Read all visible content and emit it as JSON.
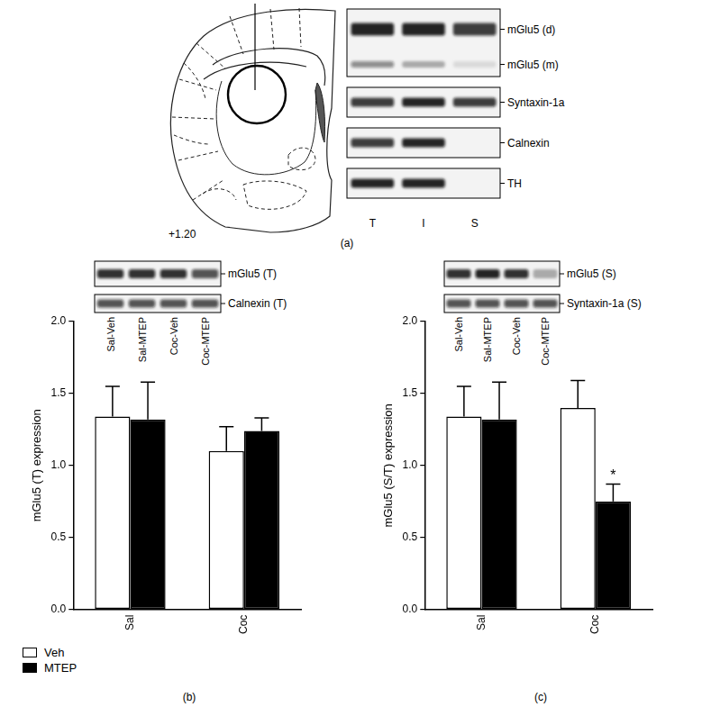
{
  "panel_labels": [
    "(a)",
    "(b)",
    "(c)"
  ],
  "atlas": {
    "label": "+1.20"
  },
  "blots": [
    {
      "lanes": [
        "T",
        "I",
        "S"
      ],
      "strips": [
        {
          "bands": [
            {
              "label": "mGlu5 (d)",
              "signal": [
                0.9,
                0.9,
                0.8
              ]
            },
            {
              "label": "mGlu5 (m)",
              "signal": [
                0.45,
                0.3,
                0.1
              ]
            }
          ]
        },
        {
          "bands": [
            {
              "label": "Syntaxin-1a",
              "signal": [
                0.8,
                0.9,
                0.8
              ]
            }
          ]
        },
        {
          "bands": [
            {
              "label": "Calnexin",
              "signal": [
                0.8,
                0.9,
                0
              ]
            }
          ]
        },
        {
          "bands": [
            {
              "label": "TH",
              "signal": [
                0.9,
                0.9,
                0
              ]
            }
          ]
        }
      ]
    },
    {
      "lanes": [
        "Sal-Veh",
        "Sal-MTEP",
        "Coc-Veh",
        "Coc-MTEP"
      ],
      "strips": [
        {
          "bands": [
            {
              "label": "mGlu5 (T)",
              "signal": [
                0.85,
                0.85,
                0.85,
                0.7
              ]
            }
          ]
        },
        {
          "bands": [
            {
              "label": "Calnexin (T)",
              "signal": [
                0.7,
                0.7,
                0.7,
                0.7
              ]
            }
          ]
        }
      ]
    },
    {
      "lanes": [
        "Sal-Veh",
        "Sal-MTEP",
        "Coc-Veh",
        "Coc-MTEP"
      ],
      "strips": [
        {
          "bands": [
            {
              "label": "mGlu5 (S)",
              "signal": [
                0.85,
                0.9,
                0.85,
                0.3
              ]
            }
          ]
        },
        {
          "bands": [
            {
              "label": "Syntaxin-1a (S)",
              "signal": [
                0.7,
                0.7,
                0.7,
                0.7
              ]
            }
          ]
        }
      ]
    }
  ],
  "chart_data": [
    {
      "type": "bar",
      "y_label": "mGlu5 (T) expression",
      "categories": [
        "Sal",
        "Coc"
      ],
      "series": [
        {
          "name": "Veh",
          "color": "#ffffff",
          "values": [
            1.34,
            1.1
          ],
          "errors": [
            0.21,
            0.17
          ]
        },
        {
          "name": "MTEP",
          "color": "#000000",
          "values": [
            1.32,
            1.24
          ],
          "errors": [
            0.26,
            0.09
          ]
        }
      ],
      "ylim": [
        0,
        2
      ],
      "yticks": [
        {
          "value": 0,
          "label": "0.0"
        },
        0.5,
        {
          "value": 1,
          "label": "1.0"
        },
        1.5,
        {
          "value": 2,
          "label": "2.0"
        }
      ],
      "grid": false,
      "legend": "bottom left"
    },
    {
      "type": "bar",
      "y_label": "mGlu5 (S/T) expression",
      "categories": [
        "Sal",
        "Coc"
      ],
      "series": [
        {
          "name": "Veh",
          "color": "#ffffff",
          "values": [
            1.34,
            1.4
          ],
          "errors": [
            0.21,
            0.19
          ]
        },
        {
          "name": "MTEP",
          "color": "#000000",
          "values": [
            1.32,
            0.75
          ],
          "errors": [
            0.26,
            0.12
          ]
        }
      ],
      "ylim": [
        0,
        2
      ],
      "yticks": [
        {
          "value": 0,
          "label": "0.0"
        },
        0.5,
        {
          "value": 1,
          "label": "1.0"
        },
        1.5,
        {
          "value": 2,
          "label": "2.0"
        }
      ],
      "grid": false,
      "annotations": [
        {
          "text": "*",
          "category": "Coc",
          "series": "MTEP"
        }
      ]
    }
  ]
}
